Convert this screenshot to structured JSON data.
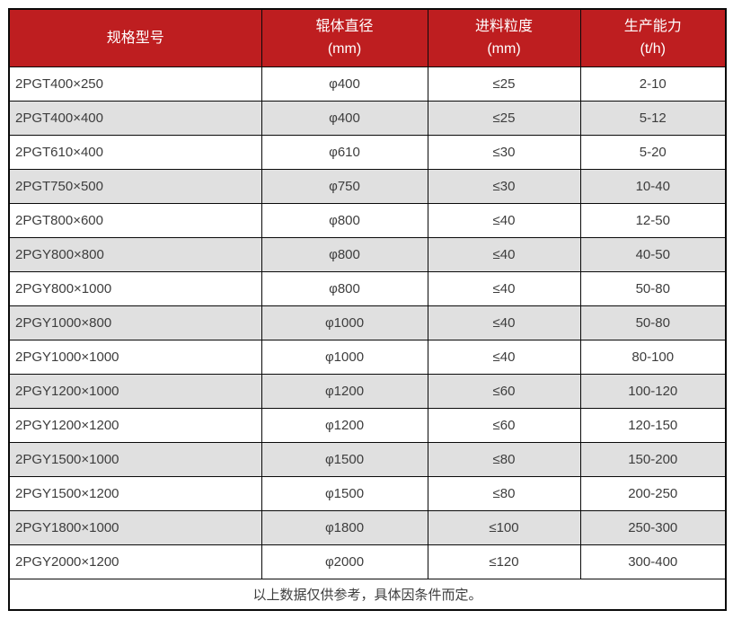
{
  "chart_data": {
    "type": "table",
    "columns": [
      {
        "title": "规格型号",
        "unit": ""
      },
      {
        "title": "辊体直径",
        "unit": "(mm)"
      },
      {
        "title": "进料粒度",
        "unit": "(mm)"
      },
      {
        "title": "生产能力",
        "unit": "(t/h)"
      }
    ],
    "rows": [
      [
        "2PGT400×250",
        "φ400",
        "≤25",
        "2-10"
      ],
      [
        "2PGT400×400",
        "φ400",
        "≤25",
        "5-12"
      ],
      [
        "2PGT610×400",
        "φ610",
        "≤30",
        "5-20"
      ],
      [
        "2PGT750×500",
        "φ750",
        "≤30",
        "10-40"
      ],
      [
        "2PGT800×600",
        "φ800",
        "≤40",
        "12-50"
      ],
      [
        "2PGY800×800",
        "φ800",
        "≤40",
        "40-50"
      ],
      [
        "2PGY800×1000",
        "φ800",
        "≤40",
        "50-80"
      ],
      [
        "2PGY1000×800",
        "φ1000",
        "≤40",
        "50-80"
      ],
      [
        "2PGY1000×1000",
        "φ1000",
        "≤40",
        "80-100"
      ],
      [
        "2PGY1200×1000",
        "φ1200",
        "≤60",
        "100-120"
      ],
      [
        "2PGY1200×1200",
        "φ1200",
        "≤60",
        "120-150"
      ],
      [
        "2PGY1500×1000",
        "φ1500",
        "≤80",
        "150-200"
      ],
      [
        "2PGY1500×1200",
        "φ1500",
        "≤80",
        "200-250"
      ],
      [
        "2PGY1800×1000",
        "φ1800",
        "≤100",
        "250-300"
      ],
      [
        "2PGY2000×1200",
        "φ2000",
        "≤120",
        "300-400"
      ]
    ],
    "footnote": "以上数据仅供参考，具体因条件而定。"
  },
  "colors": {
    "header_bg": "#BE1E20",
    "header_text": "#FFFFFF",
    "row_bg": "#FFFFFF",
    "row_alt_bg": "#E0E0E0",
    "border": "#0A0A0A",
    "text": "#3D3D3D"
  }
}
